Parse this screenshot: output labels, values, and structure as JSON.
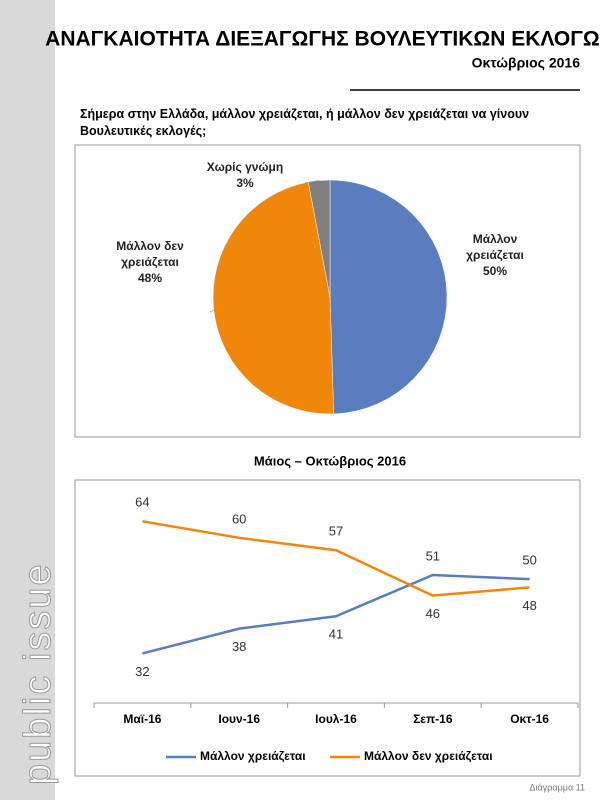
{
  "header": {
    "title": "ΑΝΑΓΚΑΙΟΤΗΤΑ ΔΙΕΞΑΓΩΓΗΣ ΒΟΥΛΕΥΤΙΚΩΝ ΕΚΛΟΓΩΝ",
    "subtitle": "Οκτώβριος 2016"
  },
  "sidebar": {
    "brand": "public issue"
  },
  "footer": {
    "label": "Διάγραμμα 11"
  },
  "chart_data": [
    {
      "type": "pie",
      "title": "Σήμερα στην Ελλάδα, μάλλον χρειάζεται, ή μάλλον δεν χρειάζεται να γίνουν Βουλευτικές εκλογές;",
      "categories": [
        "Μάλλον χρειάζεται",
        "Μάλλον δεν χρειάζεται",
        "Χωρίς γνώμη"
      ],
      "values": [
        50,
        48,
        3
      ],
      "value_labels": [
        "50%",
        "48%",
        "3%"
      ],
      "colors": [
        "#5a7dbf",
        "#f0870b",
        "#808080"
      ]
    },
    {
      "type": "line",
      "title": "Μάιος – Οκτώβριος 2016",
      "categories": [
        "Μαϊ-16",
        "Ιουν-16",
        "Ιουλ-16",
        "Σεπ-16",
        "Οκτ-16"
      ],
      "series": [
        {
          "name": "Μάλλον χρειάζεται",
          "color": "#5a7dbf",
          "values": [
            32,
            38,
            41,
            51,
            50
          ]
        },
        {
          "name": "Μάλλον δεν χρειάζεται",
          "color": "#f0870b",
          "values": [
            64,
            60,
            57,
            46,
            48
          ]
        }
      ],
      "ylim": [
        20,
        74
      ],
      "legend": "bottom"
    }
  ]
}
